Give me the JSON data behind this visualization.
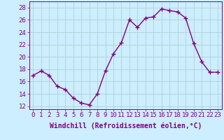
{
  "x": [
    0,
    1,
    2,
    3,
    4,
    5,
    6,
    7,
    8,
    9,
    10,
    11,
    12,
    13,
    14,
    15,
    16,
    17,
    18,
    19,
    20,
    21,
    22,
    23
  ],
  "y": [
    17.0,
    17.7,
    17.0,
    15.2,
    14.7,
    13.3,
    12.5,
    12.2,
    14.0,
    17.7,
    20.5,
    22.3,
    26.0,
    24.8,
    26.3,
    26.5,
    27.8,
    27.5,
    27.3,
    26.3,
    22.2,
    19.2,
    17.5,
    17.5
  ],
  "line_color": "#800080",
  "marker": "+",
  "marker_size": 4,
  "linewidth": 1.0,
  "xlabel": "Windchill (Refroidissement éolien,°C)",
  "xlabel_fontsize": 7,
  "ylabel_ticks": [
    12,
    14,
    16,
    18,
    20,
    22,
    24,
    26,
    28
  ],
  "xtick_labels": [
    "0",
    "1",
    "2",
    "3",
    "4",
    "5",
    "6",
    "7",
    "8",
    "9",
    "10",
    "11",
    "12",
    "13",
    "14",
    "15",
    "16",
    "17",
    "18",
    "19",
    "20",
    "21",
    "22",
    "23"
  ],
  "ylim": [
    11.5,
    29.0
  ],
  "xlim": [
    -0.5,
    23.5
  ],
  "bg_color": "#cceeff",
  "grid_color": "#aacccc",
  "tick_color": "#800080",
  "tick_fontsize": 6.5,
  "spine_color": "#800080"
}
